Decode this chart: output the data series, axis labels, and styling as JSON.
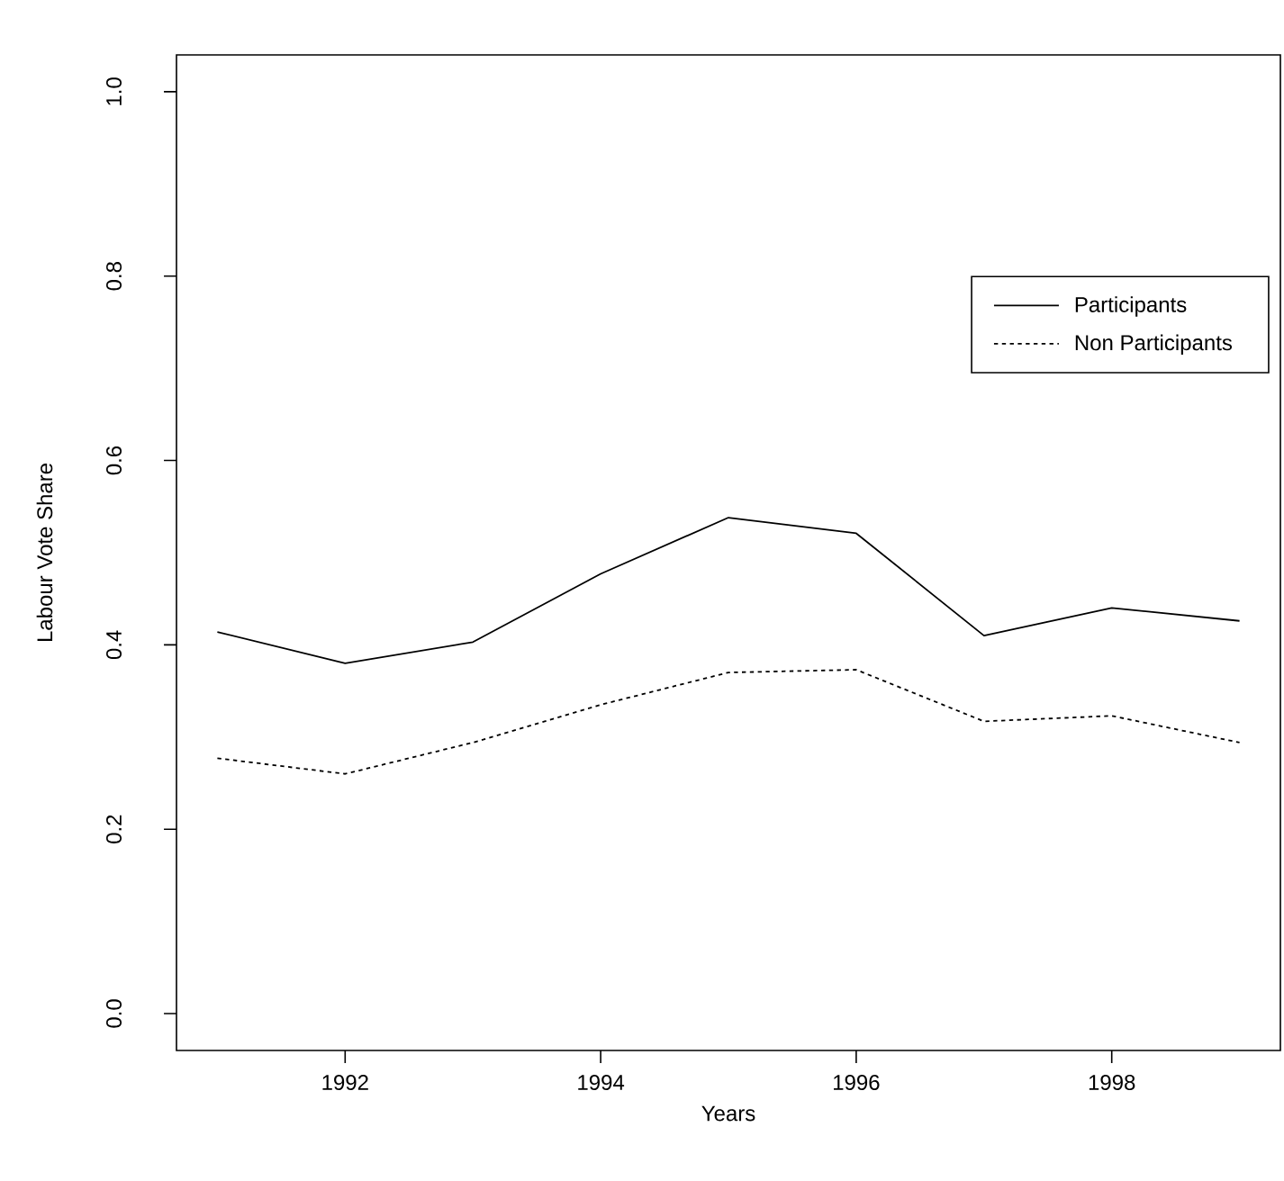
{
  "chart_data": {
    "type": "line",
    "xlabel": "Years",
    "ylabel": "Labour Vote Share",
    "x": [
      1991,
      1992,
      1993,
      1994,
      1995,
      1996,
      1997,
      1998,
      1999
    ],
    "series": [
      {
        "name": "Participants",
        "color": "#000000",
        "line_style": "solid",
        "values": [
          0.414,
          0.38,
          0.403,
          0.477,
          0.538,
          0.521,
          0.41,
          0.44,
          0.426
        ]
      },
      {
        "name": "Non Participants",
        "color": "#000000",
        "line_style": "dotted",
        "values": [
          0.277,
          0.26,
          0.294,
          0.335,
          0.37,
          0.373,
          0.317,
          0.323,
          0.294
        ]
      }
    ],
    "xlim": [
      1990.68,
      1999.32
    ],
    "ylim": [
      -0.04,
      1.04
    ],
    "xticks": [
      1992,
      1994,
      1996,
      1998
    ],
    "yticks": [
      {
        "value": 0,
        "label": "0.0"
      },
      0.2,
      0.4,
      0.6,
      0.8,
      {
        "value": 1,
        "label": "1.0"
      }
    ],
    "grid": false,
    "legend": "top right",
    "marker": "none"
  }
}
